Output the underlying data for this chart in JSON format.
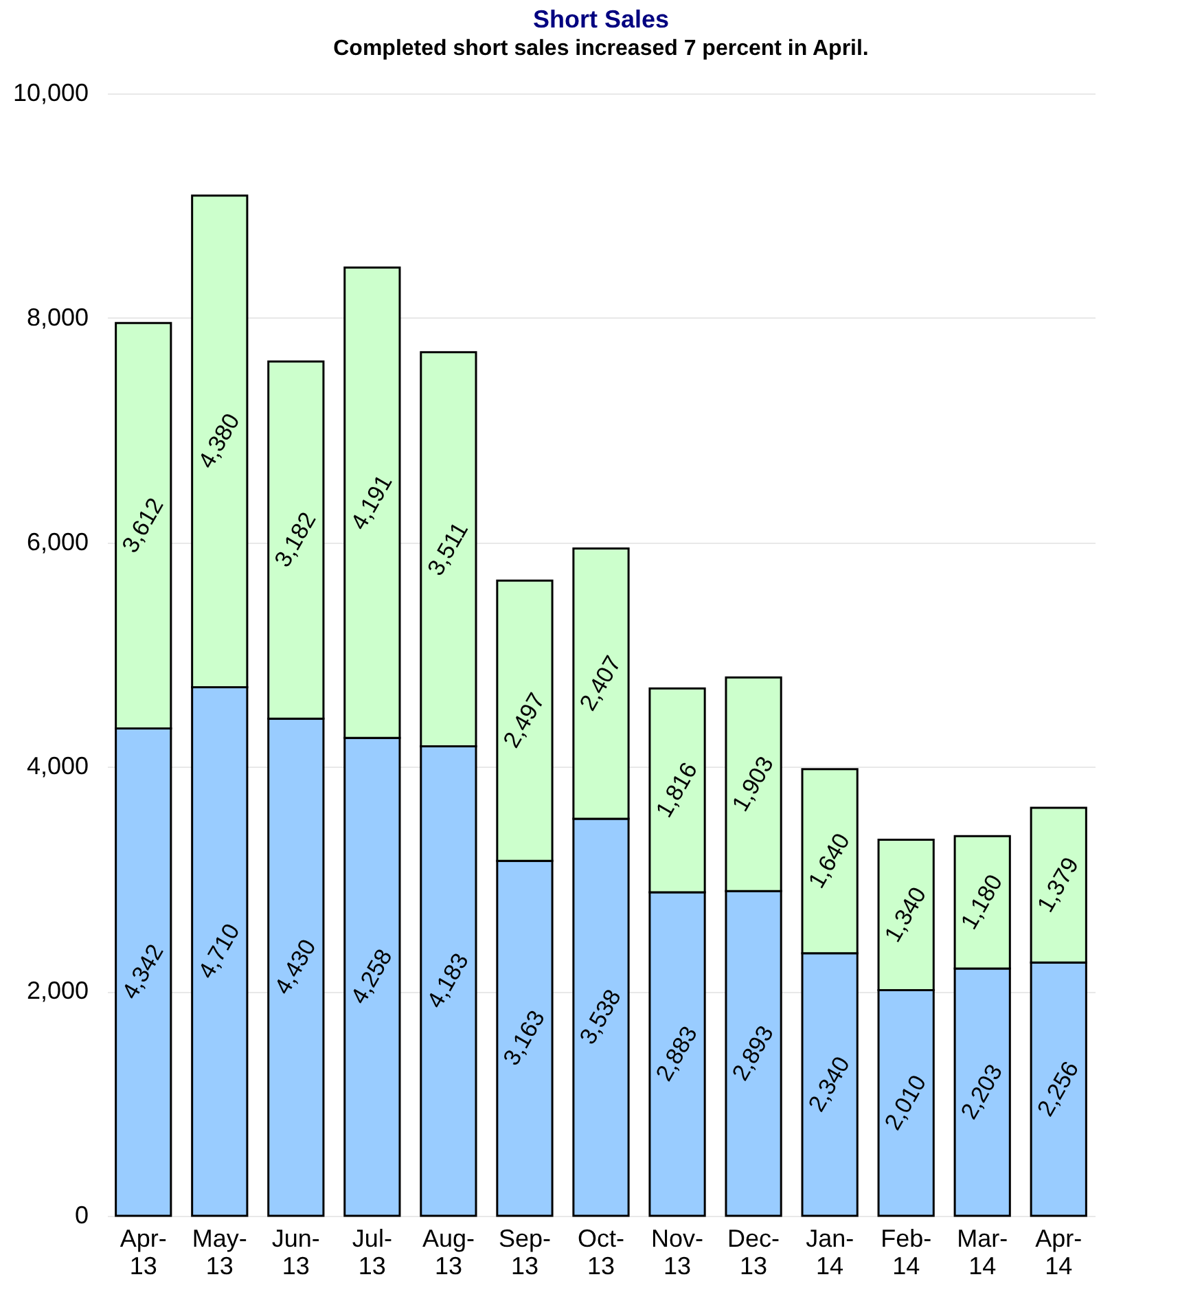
{
  "chart_data": {
    "type": "bar",
    "title": "Short Sales",
    "subtitle": "Completed short sales increased 7 percent in April.",
    "categories": [
      "Apr-13",
      "May-13",
      "Jun-13",
      "Jul-13",
      "Aug-13",
      "Sep-13",
      "Oct-13",
      "Nov-13",
      "Dec-13",
      "Jan-14",
      "Feb-14",
      "Mar-14",
      "Apr-14"
    ],
    "stacked": true,
    "series": [
      {
        "color": "#99ccff",
        "values": [
          4342,
          4710,
          4430,
          4258,
          4183,
          3163,
          3538,
          2883,
          2893,
          2340,
          2010,
          2203,
          2256
        ],
        "value_labels": [
          "4,342",
          "4,710",
          "4,430",
          "4,258",
          "4,183",
          "3,163",
          "3,538",
          "2,883",
          "2,893",
          "2,340",
          "2,010",
          "2,203",
          "2,256"
        ]
      },
      {
        "color": "#ccffcc",
        "values": [
          3612,
          4380,
          3182,
          4191,
          3511,
          2497,
          2407,
          1816,
          1903,
          1640,
          1340,
          1180,
          1379
        ],
        "value_labels": [
          "3,612",
          "4,380",
          "3,182",
          "4,191",
          "3,511",
          "2,497",
          "2,407",
          "1,816",
          "1,903",
          "1,640",
          "1,340",
          "1,180",
          "1,379"
        ]
      }
    ],
    "ylim": [
      0,
      10000
    ],
    "yticks": [
      0,
      {
        "value": 2000,
        "label": "2,000"
      },
      {
        "value": 4000,
        "label": "4,000"
      },
      {
        "value": 6000,
        "label": "6,000"
      },
      {
        "value": 8000,
        "label": "8,000"
      },
      {
        "value": 10000,
        "label": "10,000"
      }
    ],
    "grid": "y",
    "legend": false
  }
}
